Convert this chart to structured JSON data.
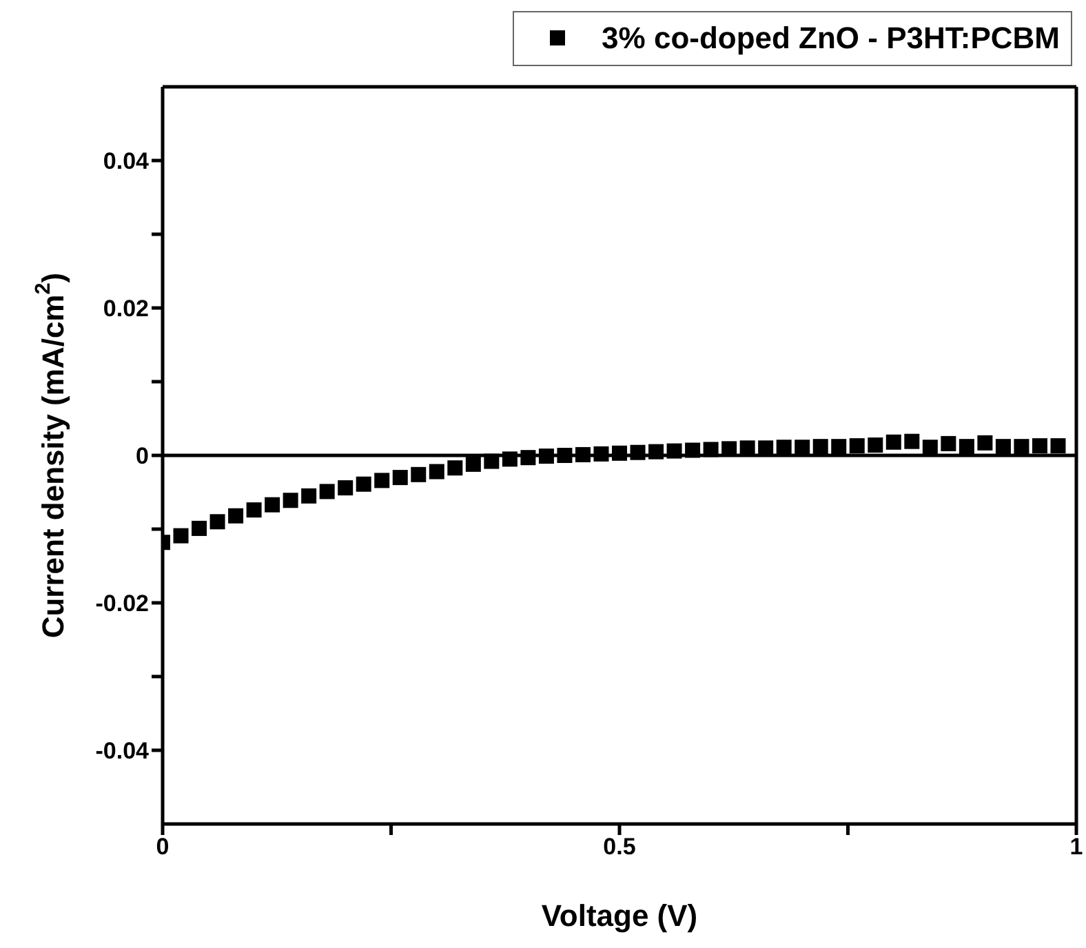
{
  "chart_data": {
    "type": "scatter",
    "xlabel": "Voltage (V)",
    "ylabel": "Current density (mA/cm$^{2}$)",
    "x": [
      0,
      0.02,
      0.04,
      0.06,
      0.08,
      0.1,
      0.12,
      0.14,
      0.16,
      0.18,
      0.2,
      0.22,
      0.24,
      0.26,
      0.28,
      0.3,
      0.32,
      0.34,
      0.36,
      0.38,
      0.4,
      0.42,
      0.44,
      0.46,
      0.48,
      0.5,
      0.52,
      0.54,
      0.56,
      0.58,
      0.6,
      0.62,
      0.64,
      0.66,
      0.68,
      0.7,
      0.72,
      0.74,
      0.76,
      0.78,
      0.8,
      0.82,
      0.84,
      0.86,
      0.88,
      0.9,
      0.92,
      0.94,
      0.96,
      0.98
    ],
    "series": [
      {
        "name": "3% co-doped ZnO - P3HT:PCBM",
        "color": "#000000",
        "values": [
          -0.0118,
          -0.0109,
          -0.0099,
          -0.009,
          -0.0082,
          -0.0074,
          -0.0067,
          -0.0061,
          -0.0055,
          -0.0049,
          -0.0044,
          -0.0039,
          -0.0034,
          -0.003,
          -0.0026,
          -0.0022,
          -0.0017,
          -0.0012,
          -0.0008,
          -0.0005,
          -0.0003,
          -0.0001,
          0,
          0.0001,
          0.0002,
          0.0003,
          0.0004,
          0.0005,
          0.0006,
          0.0007,
          0.0008,
          0.0009,
          0.001,
          0.001,
          0.0011,
          0.0011,
          0.0012,
          0.0012,
          0.0013,
          0.0014,
          0.0018,
          0.0019,
          0.0011,
          0.0016,
          0.0012,
          0.0017,
          0.0012,
          0.0012,
          0.0013,
          0.0013
        ]
      }
    ],
    "marker": "square",
    "legend": "top right",
    "xlim": [
      0,
      1
    ],
    "xticks": [
      0,
      {
        "value": 0.25,
        "label": null
      },
      0.5,
      {
        "value": 0.75,
        "label": null
      },
      1
    ],
    "ylim": [
      -0.05,
      0.05
    ],
    "yticks": [
      -0.04,
      {
        "value": -0.03,
        "label": null
      },
      -0.02,
      {
        "value": -0.01,
        "label": null
      },
      0,
      {
        "value": 0.01,
        "label": null
      },
      0.02,
      {
        "value": 0.03,
        "label": null
      },
      0.04
    ],
    "ref_lines": [
      {
        "axis": "y",
        "value": 0,
        "color": "#000000",
        "line_style": "solid"
      }
    ],
    "grid": false
  }
}
